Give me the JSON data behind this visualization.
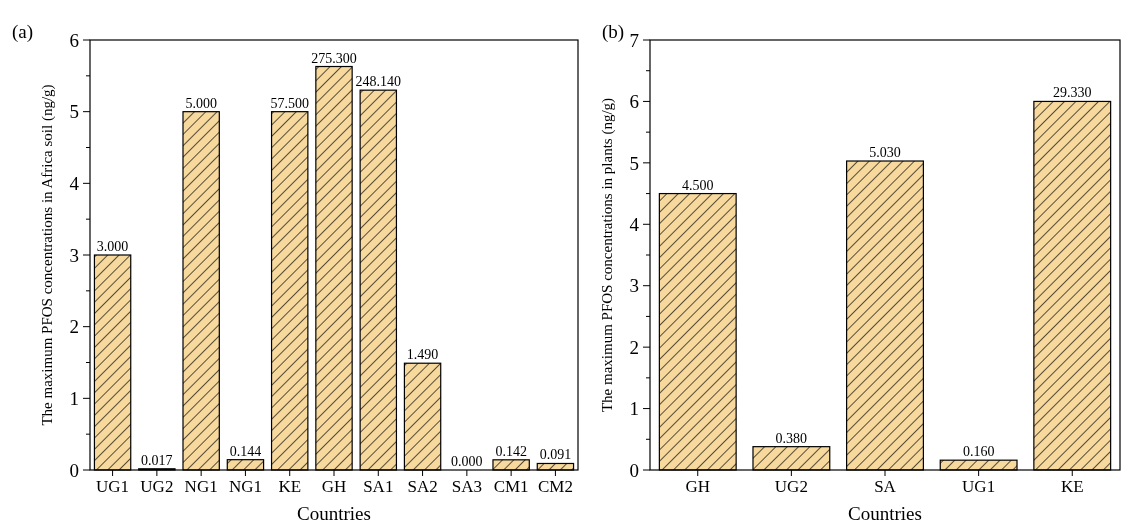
{
  "chart_data": [
    {
      "type": "bar",
      "annotations": [
        "(a)",
        {
          "text": "57.500",
          "x": "KE",
          "y": 5.0
        },
        {
          "text": "275.300",
          "x": "GH",
          "y": 5.63
        },
        {
          "text": "248.140",
          "x": "SA1",
          "y": 5.3
        }
      ],
      "xlabel": "Countries",
      "ylabel": "The maximum PFOS concentrations in Africa soil (ng/g)",
      "categories": [
        "UG1",
        "UG2",
        "NG1",
        "NG1",
        "KE",
        "GH",
        "SA1",
        "SA2",
        "SA3",
        "CM1",
        "CM2"
      ],
      "values": [
        3.0,
        0.017,
        5.0,
        0.144,
        5.0,
        5.63,
        5.3,
        1.49,
        0,
        0.142,
        0.091
      ],
      "value_labels": [
        "3.000",
        "0.017",
        "5.000",
        "0.144",
        null,
        null,
        null,
        "1.490",
        "0.000",
        "0.142",
        "0.091"
      ],
      "color": "#f7d99e",
      "ylim": [
        0,
        6
      ],
      "yticks": [
        0,
        1,
        2,
        3,
        4,
        5,
        6
      ]
    },
    {
      "type": "bar",
      "annotations": [
        "(b)",
        {
          "text": "29.330",
          "x": "KE",
          "y": 6.0
        }
      ],
      "xlabel": "Countries",
      "ylabel": "The maximum PFOS concentrations in plants (ng/g)",
      "categories": [
        "GH",
        "UG2",
        "SA",
        "UG1",
        "KE"
      ],
      "values": [
        4.5,
        0.38,
        5.03,
        0.16,
        6.0
      ],
      "value_labels": [
        "4.500",
        "0.380",
        "5.030",
        "0.160",
        null
      ],
      "color": "#f7d99e",
      "ylim": [
        0,
        7
      ],
      "yticks": [
        0,
        1,
        2,
        3,
        4,
        5,
        6,
        7
      ]
    }
  ]
}
